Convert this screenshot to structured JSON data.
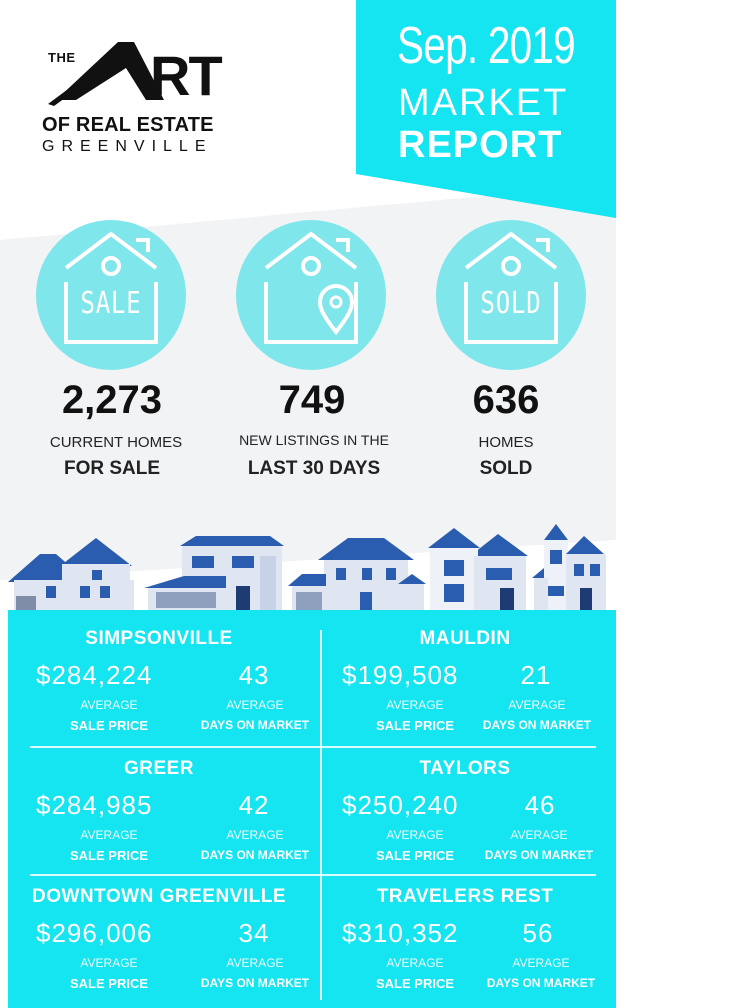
{
  "logo": {
    "the": "THE",
    "art_rest": "RT",
    "line2": "OF REAL ESTATE",
    "line3": "GREENVILLE"
  },
  "banner": {
    "date": "Sep. 2019",
    "line1": "MARKET",
    "line2": "REPORT"
  },
  "colors": {
    "accent": "#14e5f0",
    "icon_circle": "#7fe6eb",
    "band_grey": "#f2f3f5",
    "house_blue": "#2a5db0"
  },
  "stats": [
    {
      "icon": "house-sale-icon",
      "icon_word": "SALE",
      "number": "2,273",
      "line1": "CURRENT HOMES",
      "line2": "FOR SALE"
    },
    {
      "icon": "house-location-icon",
      "icon_word": "",
      "number": "749",
      "line1": "NEW LISTINGS IN THE",
      "line2": "LAST 30 DAYS"
    },
    {
      "icon": "house-sold-icon",
      "icon_word": "SOLD",
      "number": "636",
      "line1": "HOMES",
      "line2": "SOLD"
    }
  ],
  "labels": {
    "avg": "AVERAGE",
    "sale_price": "SALE PRICE",
    "days_on_market": "DAYS ON MARKET"
  },
  "areas": [
    {
      "city": "SIMPSONVILLE",
      "price": "$284,224",
      "days": "43"
    },
    {
      "city": "MAULDIN",
      "price": "$199,508",
      "days": "21"
    },
    {
      "city": "GREER",
      "price": "$284,985",
      "days": "42"
    },
    {
      "city": "TAYLORS",
      "price": "$250,240",
      "days": "46"
    },
    {
      "city": "DOWNTOWN GREENVILLE",
      "price": "$296,006",
      "days": "34"
    },
    {
      "city": "TRAVELERS REST",
      "price": "$310,352",
      "days": "56"
    }
  ]
}
